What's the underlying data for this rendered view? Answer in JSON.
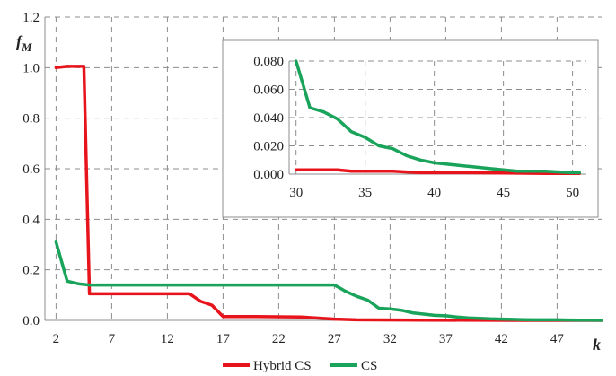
{
  "chart_data": [
    {
      "type": "line",
      "ylabel": "f",
      "ylabel_sub": "M",
      "xlabel": "k",
      "x_ticks": [
        "2",
        "7",
        "12",
        "17",
        "22",
        "27",
        "32",
        "37",
        "42",
        "47"
      ],
      "y_ticks": [
        "0.0",
        "0.2",
        "0.4",
        "0.6",
        "0.8",
        "1.0",
        "1.2"
      ],
      "xlim": [
        1,
        51
      ],
      "ylim": [
        0,
        1.2
      ],
      "grid": "dashed",
      "legend_position": "bottom",
      "series": [
        {
          "name": "Hybrid CS",
          "color": "#e8141c",
          "x": [
            2,
            3,
            4,
            4.5,
            5,
            6,
            10,
            14,
            15,
            16,
            17,
            20,
            24,
            27,
            29,
            35,
            43,
            51
          ],
          "y": [
            1.0,
            1.005,
            1.005,
            1.005,
            0.105,
            0.105,
            0.105,
            0.105,
            0.075,
            0.06,
            0.015,
            0.015,
            0.013,
            0.005,
            0.002,
            0.001,
            0.0,
            0.0
          ]
        },
        {
          "name": "CS",
          "color": "#1aa35a",
          "x": [
            2,
            3,
            4,
            5,
            10,
            15,
            20,
            25,
            27,
            28,
            29,
            30,
            31,
            32,
            33,
            34,
            35,
            36,
            37,
            38,
            39,
            40,
            41,
            42,
            43,
            44,
            45,
            46,
            47,
            48,
            49,
            50,
            51
          ],
          "y": [
            0.31,
            0.155,
            0.145,
            0.14,
            0.14,
            0.14,
            0.14,
            0.14,
            0.14,
            0.115,
            0.095,
            0.08,
            0.048,
            0.045,
            0.04,
            0.03,
            0.025,
            0.02,
            0.018,
            0.013,
            0.01,
            0.008,
            0.006,
            0.005,
            0.004,
            0.003,
            0.002,
            0.002,
            0.002,
            0.0015,
            0.001,
            0.001,
            0.0005
          ]
        }
      ]
    },
    {
      "type": "line",
      "inset": true,
      "x_ticks": [
        "30",
        "35",
        "40",
        "45",
        "50"
      ],
      "y_ticks": [
        "0.000",
        "0.020",
        "0.040",
        "0.060",
        "0.080"
      ],
      "xlim": [
        29.5,
        51
      ],
      "ylim": [
        0,
        0.08
      ],
      "grid": "dashed",
      "series": [
        {
          "name": "Hybrid CS",
          "color": "#e8141c",
          "x": [
            30,
            31,
            32,
            33,
            34,
            35,
            36,
            37,
            38,
            39,
            40,
            42,
            45,
            48,
            50.5
          ],
          "y": [
            0.003,
            0.003,
            0.003,
            0.003,
            0.002,
            0.002,
            0.002,
            0.002,
            0.0015,
            0.001,
            0.001,
            0.001,
            0.0008,
            0.0005,
            0.0005
          ]
        },
        {
          "name": "CS",
          "color": "#1aa35a",
          "x": [
            30,
            31,
            32,
            33,
            34,
            35,
            36,
            37,
            38,
            39,
            40,
            41,
            42,
            43,
            44,
            45,
            46,
            47,
            48,
            49,
            50,
            50.5
          ],
          "y": [
            0.08,
            0.047,
            0.044,
            0.039,
            0.03,
            0.026,
            0.02,
            0.018,
            0.013,
            0.01,
            0.008,
            0.007,
            0.006,
            0.005,
            0.004,
            0.003,
            0.002,
            0.002,
            0.002,
            0.0015,
            0.001,
            0.001
          ]
        }
      ]
    }
  ],
  "legend": [
    {
      "label": "Hybrid CS",
      "color": "#e8141c"
    },
    {
      "label": "CS",
      "color": "#1aa35a"
    }
  ]
}
